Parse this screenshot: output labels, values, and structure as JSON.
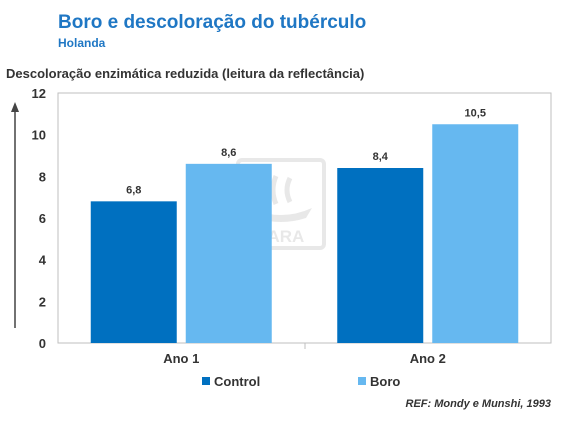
{
  "header": {
    "title": "Boro e descoloração do tubérculo",
    "subtitle": "Holanda"
  },
  "reference": "REF: Mondy e Munshi, 1993",
  "watermark": {
    "text": "YARA",
    "icon": "yara-viking-ship-logo"
  },
  "colors": {
    "control": "#0070c0",
    "boro": "#66b8f0",
    "title": "#1f77c4"
  },
  "chart_data": {
    "type": "bar",
    "title": "Boro e descoloração do tubérculo",
    "subtitle": "Holanda",
    "xlabel": "",
    "ylabel": "Descoloração enzimática reduzida (leitura da reflectância)",
    "categories": [
      "Ano 1",
      "Ano 2"
    ],
    "series": [
      {
        "name": "Control",
        "values": [
          6.8,
          8.4
        ],
        "labels": [
          "6,8",
          "8,4"
        ],
        "color": "#0070c0"
      },
      {
        "name": "Boro",
        "values": [
          8.6,
          10.5
        ],
        "labels": [
          "8,6",
          "10,5"
        ],
        "color": "#66b8f0"
      }
    ],
    "ylim": [
      0,
      12
    ],
    "yticks": [
      0,
      2,
      4,
      6,
      8,
      10,
      12
    ],
    "grid": false,
    "legend": "bottom"
  }
}
